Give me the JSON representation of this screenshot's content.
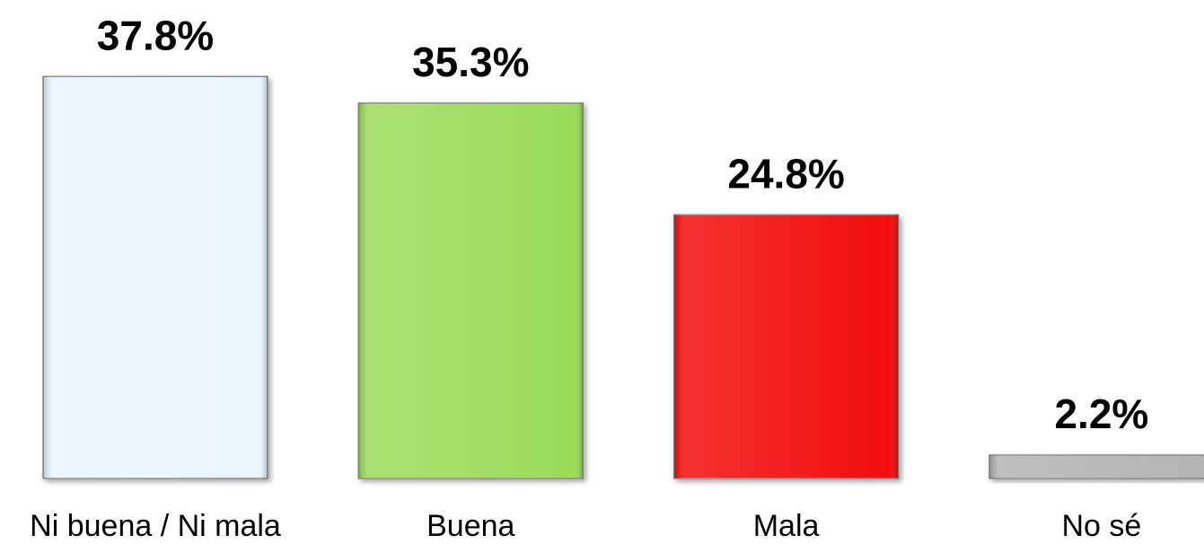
{
  "chart_data": {
    "type": "bar",
    "categories": [
      "Ni buena / Ni mala",
      "Buena",
      "Mala",
      "No sé"
    ],
    "values": [
      37.8,
      35.3,
      24.8,
      2.2
    ],
    "value_labels": [
      "37.8%",
      "35.3%",
      "24.8%",
      "2.2%"
    ],
    "colors": [
      "#eaf6fd",
      "#9bdc5a",
      "#f20a0a",
      "#b4b4b4"
    ],
    "ylim": [
      0,
      45
    ]
  }
}
